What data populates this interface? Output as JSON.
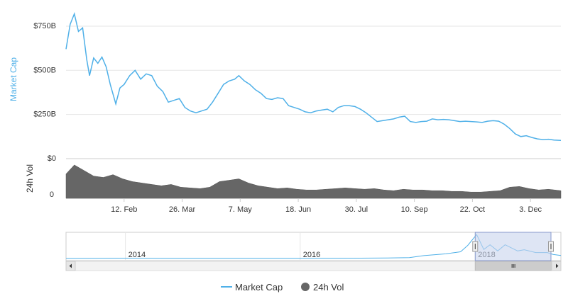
{
  "chart_data": {
    "type": "line",
    "colors": {
      "market_cap": "#4fb0e8",
      "volume": "#666666",
      "navigator_mask": "#c8d4ec"
    },
    "y_axis": {
      "title": "Market Cap",
      "ticks": [
        "$0",
        "$250B",
        "$500B",
        "$750B"
      ],
      "tick_values": [
        0,
        250,
        500,
        750
      ],
      "range": [
        0,
        850
      ]
    },
    "volume_axis": {
      "title": "24h Vol",
      "ticks": [
        "0"
      ]
    },
    "x_axis": {
      "ticks": [
        "12. Feb",
        "26. Mar",
        "7. May",
        "18. Jun",
        "30. Jul",
        "10. Sep",
        "22. Oct",
        "3. Dec"
      ],
      "tick_dates": [
        "2018-02-12",
        "2018-03-26",
        "2018-05-07",
        "2018-06-18",
        "2018-07-30",
        "2018-09-10",
        "2018-10-22",
        "2018-12-03"
      ],
      "range": [
        "2018-01-01",
        "2018-12-25"
      ]
    },
    "navigator": {
      "labels": [
        "2014",
        "2016",
        "2018"
      ],
      "label_dates": [
        "2014-01-01",
        "2016-01-01",
        "2018-01-01"
      ],
      "range": [
        "2013-04-28",
        "2018-12-25"
      ],
      "selected": [
        "2018-01-01",
        "2018-12-25"
      ]
    },
    "series": [
      {
        "name": "Market Cap",
        "unit": "$B",
        "points": [
          [
            "2018-01-01",
            620
          ],
          [
            "2018-01-04",
            760
          ],
          [
            "2018-01-07",
            820
          ],
          [
            "2018-01-10",
            720
          ],
          [
            "2018-01-13",
            740
          ],
          [
            "2018-01-16",
            560
          ],
          [
            "2018-01-18",
            470
          ],
          [
            "2018-01-21",
            570
          ],
          [
            "2018-01-24",
            540
          ],
          [
            "2018-01-27",
            575
          ],
          [
            "2018-01-30",
            520
          ],
          [
            "2018-02-02",
            420
          ],
          [
            "2018-02-06",
            310
          ],
          [
            "2018-02-09",
            400
          ],
          [
            "2018-02-12",
            420
          ],
          [
            "2018-02-16",
            470
          ],
          [
            "2018-02-20",
            500
          ],
          [
            "2018-02-24",
            450
          ],
          [
            "2018-02-28",
            480
          ],
          [
            "2018-03-04",
            470
          ],
          [
            "2018-03-08",
            410
          ],
          [
            "2018-03-12",
            380
          ],
          [
            "2018-03-16",
            320
          ],
          [
            "2018-03-20",
            330
          ],
          [
            "2018-03-24",
            340
          ],
          [
            "2018-03-28",
            290
          ],
          [
            "2018-04-01",
            270
          ],
          [
            "2018-04-05",
            260
          ],
          [
            "2018-04-09",
            270
          ],
          [
            "2018-04-13",
            280
          ],
          [
            "2018-04-17",
            320
          ],
          [
            "2018-04-21",
            370
          ],
          [
            "2018-04-25",
            420
          ],
          [
            "2018-04-29",
            440
          ],
          [
            "2018-05-03",
            450
          ],
          [
            "2018-05-06",
            470
          ],
          [
            "2018-05-10",
            440
          ],
          [
            "2018-05-14",
            420
          ],
          [
            "2018-05-18",
            390
          ],
          [
            "2018-05-22",
            370
          ],
          [
            "2018-05-26",
            340
          ],
          [
            "2018-05-30",
            335
          ],
          [
            "2018-06-03",
            345
          ],
          [
            "2018-06-07",
            340
          ],
          [
            "2018-06-11",
            300
          ],
          [
            "2018-06-15",
            290
          ],
          [
            "2018-06-19",
            280
          ],
          [
            "2018-06-23",
            265
          ],
          [
            "2018-06-27",
            260
          ],
          [
            "2018-07-01",
            270
          ],
          [
            "2018-07-05",
            275
          ],
          [
            "2018-07-09",
            280
          ],
          [
            "2018-07-13",
            265
          ],
          [
            "2018-07-17",
            290
          ],
          [
            "2018-07-21",
            300
          ],
          [
            "2018-07-25",
            300
          ],
          [
            "2018-07-29",
            295
          ],
          [
            "2018-08-02",
            280
          ],
          [
            "2018-08-06",
            260
          ],
          [
            "2018-08-10",
            235
          ],
          [
            "2018-08-14",
            210
          ],
          [
            "2018-08-18",
            215
          ],
          [
            "2018-08-22",
            220
          ],
          [
            "2018-08-26",
            225
          ],
          [
            "2018-08-30",
            235
          ],
          [
            "2018-09-03",
            240
          ],
          [
            "2018-09-07",
            210
          ],
          [
            "2018-09-11",
            205
          ],
          [
            "2018-09-15",
            210
          ],
          [
            "2018-09-19",
            212
          ],
          [
            "2018-09-23",
            225
          ],
          [
            "2018-09-27",
            220
          ],
          [
            "2018-10-01",
            222
          ],
          [
            "2018-10-05",
            220
          ],
          [
            "2018-10-09",
            215
          ],
          [
            "2018-10-13",
            210
          ],
          [
            "2018-10-17",
            212
          ],
          [
            "2018-10-21",
            210
          ],
          [
            "2018-10-25",
            208
          ],
          [
            "2018-10-29",
            205
          ],
          [
            "2018-11-02",
            212
          ],
          [
            "2018-11-06",
            215
          ],
          [
            "2018-11-10",
            212
          ],
          [
            "2018-11-14",
            195
          ],
          [
            "2018-11-18",
            170
          ],
          [
            "2018-11-22",
            140
          ],
          [
            "2018-11-26",
            125
          ],
          [
            "2018-11-30",
            130
          ],
          [
            "2018-12-04",
            120
          ],
          [
            "2018-12-08",
            112
          ],
          [
            "2018-12-12",
            108
          ],
          [
            "2018-12-16",
            110
          ],
          [
            "2018-12-20",
            105
          ],
          [
            "2018-12-25",
            103
          ]
        ]
      },
      {
        "name": "24h Vol",
        "unit": "$B",
        "points": [
          [
            "2018-01-01",
            35
          ],
          [
            "2018-01-07",
            48
          ],
          [
            "2018-01-14",
            40
          ],
          [
            "2018-01-21",
            32
          ],
          [
            "2018-01-28",
            30
          ],
          [
            "2018-02-04",
            34
          ],
          [
            "2018-02-11",
            28
          ],
          [
            "2018-02-18",
            24
          ],
          [
            "2018-02-25",
            22
          ],
          [
            "2018-03-04",
            20
          ],
          [
            "2018-03-11",
            18
          ],
          [
            "2018-03-18",
            20
          ],
          [
            "2018-03-25",
            16
          ],
          [
            "2018-04-01",
            15
          ],
          [
            "2018-04-08",
            14
          ],
          [
            "2018-04-15",
            16
          ],
          [
            "2018-04-22",
            24
          ],
          [
            "2018-04-29",
            26
          ],
          [
            "2018-05-06",
            28
          ],
          [
            "2018-05-13",
            22
          ],
          [
            "2018-05-20",
            18
          ],
          [
            "2018-05-27",
            16
          ],
          [
            "2018-06-03",
            14
          ],
          [
            "2018-06-10",
            15
          ],
          [
            "2018-06-17",
            13
          ],
          [
            "2018-06-24",
            12
          ],
          [
            "2018-07-01",
            12
          ],
          [
            "2018-07-08",
            13
          ],
          [
            "2018-07-15",
            14
          ],
          [
            "2018-07-22",
            15
          ],
          [
            "2018-07-29",
            14
          ],
          [
            "2018-08-05",
            13
          ],
          [
            "2018-08-12",
            14
          ],
          [
            "2018-08-19",
            12
          ],
          [
            "2018-08-26",
            11
          ],
          [
            "2018-09-02",
            13
          ],
          [
            "2018-09-09",
            12
          ],
          [
            "2018-09-16",
            12
          ],
          [
            "2018-09-23",
            11
          ],
          [
            "2018-09-30",
            11
          ],
          [
            "2018-10-07",
            10
          ],
          [
            "2018-10-14",
            10
          ],
          [
            "2018-10-21",
            9
          ],
          [
            "2018-10-28",
            9
          ],
          [
            "2018-11-04",
            10
          ],
          [
            "2018-11-11",
            11
          ],
          [
            "2018-11-18",
            16
          ],
          [
            "2018-11-25",
            17
          ],
          [
            "2018-12-02",
            14
          ],
          [
            "2018-12-09",
            12
          ],
          [
            "2018-12-16",
            13
          ],
          [
            "2018-12-25",
            11
          ]
        ]
      }
    ],
    "navigator_series": [
      [
        "2013-04-28",
        1.5
      ],
      [
        "2014-01-01",
        12
      ],
      [
        "2014-06-01",
        8
      ],
      [
        "2015-01-01",
        4
      ],
      [
        "2015-06-01",
        4
      ],
      [
        "2016-01-01",
        6
      ],
      [
        "2016-06-01",
        10
      ],
      [
        "2017-01-01",
        17
      ],
      [
        "2017-04-01",
        30
      ],
      [
        "2017-06-01",
        100
      ],
      [
        "2017-09-01",
        160
      ],
      [
        "2017-11-01",
        230
      ],
      [
        "2017-12-01",
        450
      ],
      [
        "2018-01-07",
        820
      ],
      [
        "2018-02-06",
        310
      ],
      [
        "2018-03-04",
        470
      ],
      [
        "2018-04-05",
        260
      ],
      [
        "2018-05-06",
        470
      ],
      [
        "2018-06-27",
        260
      ],
      [
        "2018-07-25",
        300
      ],
      [
        "2018-09-11",
        205
      ],
      [
        "2018-10-29",
        205
      ],
      [
        "2018-11-22",
        140
      ],
      [
        "2018-12-25",
        103
      ]
    ],
    "legend": {
      "position": "bottom-center",
      "items": [
        {
          "label": "Market Cap",
          "symbol": "line"
        },
        {
          "label": "24h Vol",
          "symbol": "circle"
        }
      ]
    }
  }
}
